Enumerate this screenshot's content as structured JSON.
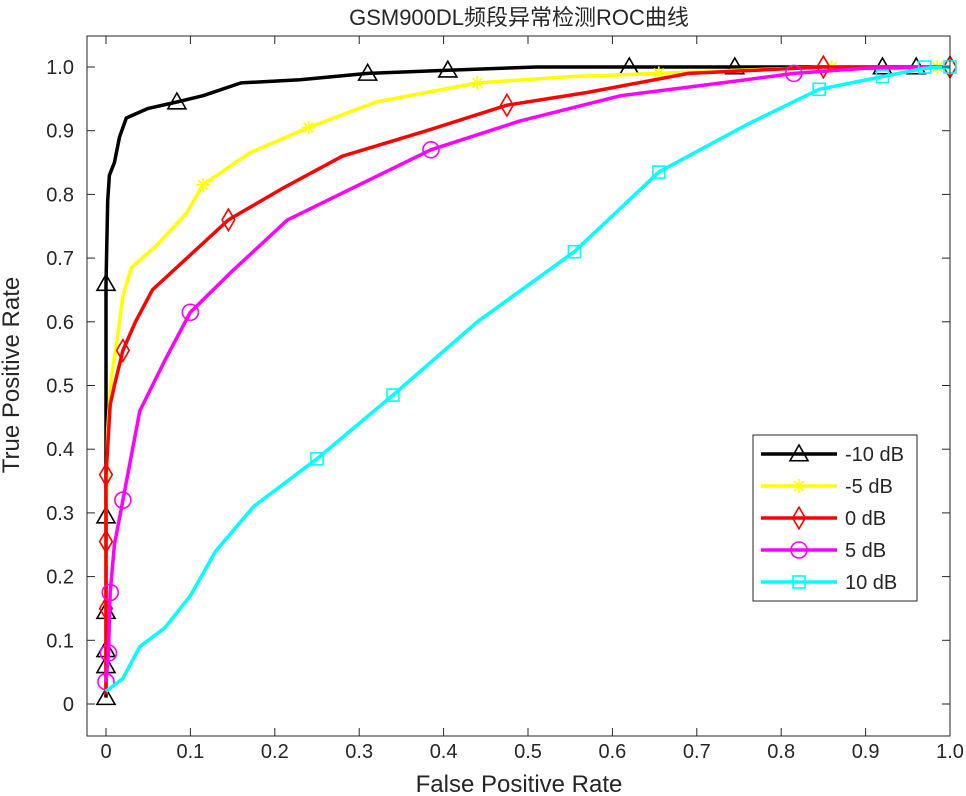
{
  "chart_data": {
    "type": "line",
    "title": "GSM900DL频段异常检测ROC曲线",
    "xlabel": "False Positive Rate",
    "ylabel": "True Positive Rate",
    "xlim": [
      0,
      1
    ],
    "ylim": [
      0,
      1
    ],
    "xticks": [
      0,
      0.1,
      0.2,
      0.3,
      0.4,
      0.5,
      0.6,
      0.7,
      0.8,
      0.9,
      1.0
    ],
    "xtick_labels": [
      "0",
      "0.1",
      "0.2",
      "0.3",
      "0.4",
      "0.5",
      "0.6",
      "0.7",
      "0.8",
      "0.9",
      "1.0"
    ],
    "yticks": [
      0,
      0.1,
      0.2,
      0.3,
      0.4,
      0.5,
      0.6,
      0.7,
      0.8,
      0.9,
      1.0
    ],
    "ytick_labels": [
      "0",
      "0.1",
      "0.2",
      "0.3",
      "0.4",
      "0.5",
      "0.6",
      "0.7",
      "0.8",
      "0.9",
      "1.0"
    ],
    "grid": false,
    "legend_position": "lower-right",
    "series": [
      {
        "name": "-10 dB",
        "color": "#000000",
        "marker": "triangle",
        "points": [
          [
            0,
            0.01
          ],
          [
            0,
            0.06
          ],
          [
            0,
            0.085
          ],
          [
            0,
            0.145
          ],
          [
            0,
            0.295
          ],
          [
            0,
            0.53
          ],
          [
            0,
            0.66
          ],
          [
            0.002,
            0.79
          ],
          [
            0.004,
            0.83
          ],
          [
            0.01,
            0.85
          ],
          [
            0.016,
            0.89
          ],
          [
            0.024,
            0.92
          ],
          [
            0.05,
            0.935
          ],
          [
            0.084,
            0.945
          ],
          [
            0.115,
            0.955
          ],
          [
            0.16,
            0.975
          ],
          [
            0.23,
            0.98
          ],
          [
            0.31,
            0.99
          ],
          [
            0.405,
            0.995
          ],
          [
            0.51,
            1.0
          ],
          [
            0.62,
            1.0
          ],
          [
            0.745,
            1.0
          ],
          [
            0.92,
            1.0
          ],
          [
            0.96,
            1.0
          ],
          [
            1.0,
            1.0
          ]
        ],
        "markers": [
          [
            0,
            0.01
          ],
          [
            0,
            0.06
          ],
          [
            0,
            0.085
          ],
          [
            0,
            0.145
          ],
          [
            0,
            0.295
          ],
          [
            0,
            0.66
          ],
          [
            0.084,
            0.945
          ],
          [
            0.31,
            0.99
          ],
          [
            0.405,
            0.995
          ],
          [
            0.62,
            1.0
          ],
          [
            0.745,
            1.0
          ],
          [
            0.92,
            1.0
          ],
          [
            0.96,
            1.0
          ]
        ]
      },
      {
        "name": "-5 dB",
        "color": "#ffff00",
        "marker": "asterisk",
        "points": [
          [
            0,
            0.02
          ],
          [
            0,
            0.1
          ],
          [
            0,
            0.3
          ],
          [
            0.002,
            0.43
          ],
          [
            0.006,
            0.51
          ],
          [
            0.012,
            0.56
          ],
          [
            0.02,
            0.64
          ],
          [
            0.03,
            0.685
          ],
          [
            0.06,
            0.72
          ],
          [
            0.095,
            0.77
          ],
          [
            0.115,
            0.815
          ],
          [
            0.17,
            0.865
          ],
          [
            0.24,
            0.905
          ],
          [
            0.32,
            0.945
          ],
          [
            0.44,
            0.975
          ],
          [
            0.55,
            0.985
          ],
          [
            0.655,
            0.99
          ],
          [
            0.75,
            0.995
          ],
          [
            0.86,
            1.0
          ],
          [
            0.96,
            1.0
          ],
          [
            1.0,
            1.0
          ]
        ],
        "markers": [
          [
            0.115,
            0.815
          ],
          [
            0.24,
            0.905
          ],
          [
            0.44,
            0.975
          ],
          [
            0.655,
            0.99
          ],
          [
            0.86,
            1.0
          ],
          [
            0.985,
            1.0
          ]
        ]
      },
      {
        "name": "0 dB",
        "color": "#ff0000",
        "marker": "diamond",
        "points": [
          [
            0,
            0.015
          ],
          [
            0,
            0.15
          ],
          [
            0,
            0.255
          ],
          [
            0,
            0.36
          ],
          [
            0.005,
            0.47
          ],
          [
            0.01,
            0.5
          ],
          [
            0.02,
            0.555
          ],
          [
            0.035,
            0.6
          ],
          [
            0.055,
            0.65
          ],
          [
            0.1,
            0.705
          ],
          [
            0.145,
            0.76
          ],
          [
            0.21,
            0.81
          ],
          [
            0.28,
            0.86
          ],
          [
            0.38,
            0.9
          ],
          [
            0.475,
            0.94
          ],
          [
            0.57,
            0.96
          ],
          [
            0.69,
            0.99
          ],
          [
            0.77,
            0.995
          ],
          [
            0.85,
            1.0
          ],
          [
            1.0,
            1.0
          ]
        ],
        "markers": [
          [
            0,
            0.15
          ],
          [
            0,
            0.255
          ],
          [
            0,
            0.36
          ],
          [
            0.02,
            0.555
          ],
          [
            0.145,
            0.76
          ],
          [
            0.475,
            0.94
          ],
          [
            0.85,
            1.0
          ],
          [
            1.0,
            1.0
          ]
        ]
      },
      {
        "name": "5 dB",
        "color": "#ff00ff",
        "marker": "circle",
        "points": [
          [
            0,
            0.035
          ],
          [
            0.003,
            0.08
          ],
          [
            0.005,
            0.175
          ],
          [
            0.01,
            0.25
          ],
          [
            0.02,
            0.32
          ],
          [
            0.04,
            0.46
          ],
          [
            0.07,
            0.54
          ],
          [
            0.1,
            0.615
          ],
          [
            0.15,
            0.68
          ],
          [
            0.215,
            0.76
          ],
          [
            0.3,
            0.815
          ],
          [
            0.385,
            0.87
          ],
          [
            0.49,
            0.915
          ],
          [
            0.61,
            0.955
          ],
          [
            0.73,
            0.975
          ],
          [
            0.815,
            0.99
          ],
          [
            0.9,
            0.998
          ],
          [
            1.0,
            1.0
          ]
        ],
        "markers": [
          [
            0,
            0.035
          ],
          [
            0.003,
            0.08
          ],
          [
            0.005,
            0.175
          ],
          [
            0.02,
            0.32
          ],
          [
            0.1,
            0.615
          ],
          [
            0.385,
            0.87
          ],
          [
            0.815,
            0.99
          ]
        ]
      },
      {
        "name": "10 dB",
        "color": "#00ffff",
        "marker": "square",
        "points": [
          [
            0,
            0.02
          ],
          [
            0.02,
            0.04
          ],
          [
            0.04,
            0.09
          ],
          [
            0.07,
            0.12
          ],
          [
            0.1,
            0.17
          ],
          [
            0.13,
            0.24
          ],
          [
            0.175,
            0.31
          ],
          [
            0.25,
            0.385
          ],
          [
            0.34,
            0.485
          ],
          [
            0.44,
            0.6
          ],
          [
            0.555,
            0.71
          ],
          [
            0.655,
            0.835
          ],
          [
            0.76,
            0.91
          ],
          [
            0.845,
            0.965
          ],
          [
            0.92,
            0.985
          ],
          [
            0.97,
            0.998
          ],
          [
            1.0,
            1.0
          ]
        ],
        "markers": [
          [
            0.25,
            0.385
          ],
          [
            0.34,
            0.485
          ],
          [
            0.555,
            0.71
          ],
          [
            0.655,
            0.835
          ],
          [
            0.845,
            0.965
          ],
          [
            0.92,
            0.985
          ],
          [
            0.97,
            1.0
          ],
          [
            1.0,
            1.0
          ]
        ]
      }
    ]
  }
}
